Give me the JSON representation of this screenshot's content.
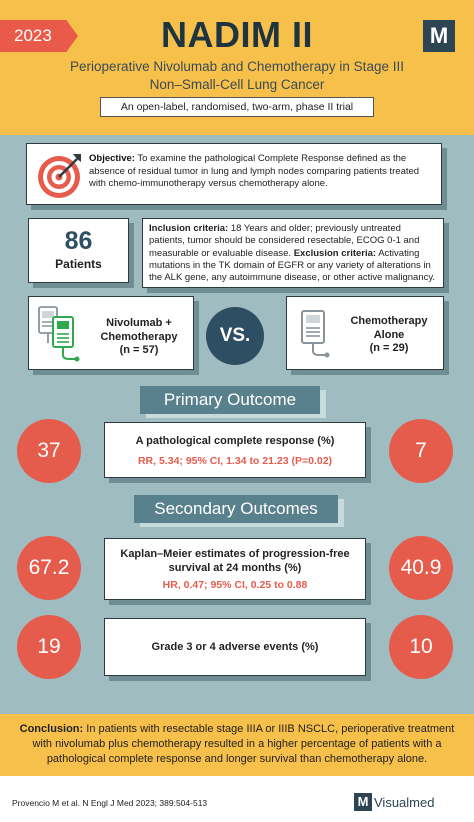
{
  "header": {
    "year": "2023",
    "title": "NADIM II",
    "logo_letter": "M",
    "subtitle_line1": "Perioperative Nivolumab and Chemotherapy in Stage III",
    "subtitle_line2": "Non–Small-Cell Lung Cancer",
    "trial_design": "An open-label, randomised, two-arm, phase II trial",
    "colors": {
      "header_bg": "#f7c04a",
      "accent_red": "#e55c4d",
      "dark_blue": "#2d4e63"
    }
  },
  "objective": {
    "label": "Objective:",
    "text": " To examine the pathological Complete Response defined as the absence of residual tumor in lung and lymph nodes comparing patients treated with chemo-immunotherapy versus chemotherapy alone.",
    "icon": "target-icon"
  },
  "patients": {
    "count": "86",
    "label": "Patients"
  },
  "criteria": {
    "inclusion_label": "Inclusion criteria:",
    "inclusion_text": " 18 Years and older; previously untreated patients, tumor should be considered resectable, ECOG 0-1 and measurable or evaluable disease. ",
    "exclusion_label": "Exclusion criteria:",
    "exclusion_text": " Activating mutations in the TK domain of EGFR or any variety of alterations in the ALK gene, any autoimmune disease, or other active malignancy."
  },
  "arms": {
    "left_line1": "Nivolumab +",
    "left_line2": "Chemotherapy",
    "left_n": "(n = 57)",
    "vs": "VS.",
    "right_line1": "Chemotherapy",
    "right_line2": "Alone",
    "right_n": "(n = 29)"
  },
  "primary": {
    "title": "Primary Outcome",
    "left_value": "37",
    "right_value": "7",
    "label": "A pathological complete response (%)",
    "stat": "RR, 5.34; 95% CI, 1.34 to 21.23 (P=0.02)"
  },
  "secondary": {
    "title": "Secondary Outcomes",
    "pfs_left": "67.2",
    "pfs_right": "40.9",
    "pfs_label_line1": "Kaplan–Meier estimates of progression-free",
    "pfs_label_line2": "survival at 24 months (%)",
    "pfs_stat": "HR, 0.47; 95% CI, 0.25 to 0.88",
    "ae_left": "19",
    "ae_right": "10",
    "ae_label": "Grade 3 or 4 adverse events (%)"
  },
  "conclusion": {
    "label": "Conclusion:",
    "text": " In patients with resectable stage IIIA or IIIB NSCLC, perioperative treatment with nivolumab plus chemotherapy resulted in a higher percentage of patients with a pathological complete response and longer survival than chemotherapy alone."
  },
  "footer": {
    "citation": "Provencio M et al. N Engl J Med 2023; 389:504-513",
    "brand_letter": "M",
    "brand_name": "Visualmed"
  }
}
